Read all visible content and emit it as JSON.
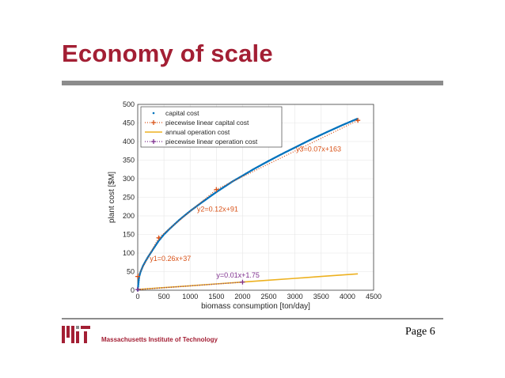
{
  "slide": {
    "title": "Economy of scale",
    "institution": "Massachusetts Institute of Technology",
    "page": "Page 6",
    "accent_color": "#a31f34",
    "rule_color": "#8c8c8c",
    "logo_icon": "mit-logo-icon"
  },
  "chart_data": {
    "type": "line",
    "xlabel": "biomass consumption [ton/day]",
    "ylabel": "plant cost [$M]",
    "xlim": [
      0,
      4500
    ],
    "ylim": [
      0,
      500
    ],
    "xticks": [
      0,
      500,
      1000,
      1500,
      2000,
      2500,
      3000,
      3500,
      4000,
      4500
    ],
    "yticks": [
      0,
      50,
      100,
      150,
      200,
      250,
      300,
      350,
      400,
      450,
      500
    ],
    "grid": true,
    "legend_position": "top-left",
    "series": [
      {
        "name": "capital cost",
        "style": "dots",
        "color": "#0072bd",
        "x": [
          0,
          25,
          50,
          100,
          150,
          200,
          300,
          400,
          500,
          600,
          800,
          1000,
          1200,
          1500,
          1800,
          2000,
          2200,
          2500,
          2800,
          3000,
          3300,
          3600,
          3900,
          4200
        ],
        "y": [
          0,
          35,
          48,
          65,
          78,
          90,
          112,
          133,
          150,
          164,
          190,
          213,
          234,
          264,
          292,
          308,
          325,
          348,
          370,
          384,
          405,
          425,
          444,
          462
        ]
      },
      {
        "name": "piecewise linear capital cost",
        "style": "dotted-plus",
        "color": "#d95319",
        "x": [
          0,
          400,
          1500,
          4200
        ],
        "y": [
          37,
          141,
          271,
          457
        ]
      },
      {
        "name": "annual operation cost",
        "style": "line",
        "color": "#edb120",
        "x": [
          0,
          500,
          1000,
          1500,
          2000,
          2500,
          3000,
          3500,
          4200
        ],
        "y": [
          2,
          7,
          12,
          17,
          22,
          27,
          32,
          37,
          44
        ]
      },
      {
        "name": "piecewise linear operation cost",
        "style": "dotted-plus",
        "color": "#7e2f8e",
        "x": [
          0,
          2000
        ],
        "y": [
          1.75,
          21.75
        ]
      }
    ],
    "annotations": [
      {
        "text": "y1=0.26x+37",
        "x": 230,
        "y": 79,
        "color": "#d95319"
      },
      {
        "text": "y2=0.12x+91",
        "x": 1130,
        "y": 212,
        "color": "#d95319"
      },
      {
        "text": "y3=0.07x+163",
        "x": 3020,
        "y": 373,
        "color": "#d95319"
      },
      {
        "text": "y=0.01x+1.75",
        "x": 1500,
        "y": 34,
        "color": "#7e2f8e"
      }
    ]
  }
}
